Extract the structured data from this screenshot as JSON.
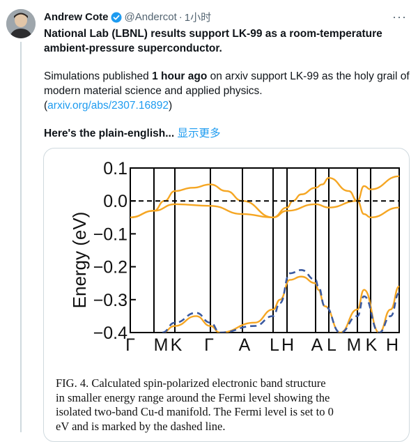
{
  "tweet": {
    "author_name": "Andrew Cote",
    "handle": "@Andercot",
    "separator": "·",
    "time": "1小时",
    "title": "National Lab (LBNL) results support LK-99 as a room-temperature ambient-pressure superconductor.",
    "body_pre": "Simulations published ",
    "body_bold": "1 hour ago",
    "body_post": " on arxiv support LK-99 as the holy grail of modern material science and applied physics.",
    "link_open": " (",
    "link_text": "arxiv.org/abs/2307.16892",
    "link_close": ")",
    "plain_english": "Here's the plain-english...",
    "show_more": "显示更多",
    "more_menu": "···"
  },
  "colors": {
    "link": "#1d9bf0",
    "verified": "#1d9bf0",
    "band_orange": "#f5a623",
    "band_blue": "#3b5aa0"
  },
  "figure": {
    "caption_lines": [
      "FIG. 4.  Calculated spin-polarized electronic band structure",
      "in smaller energy range around the Fermi level showing the",
      "isolated two-band Cu-d manifold.  The Fermi level is set to 0",
      "eV and is marked by the dashed line."
    ]
  },
  "chart_data": {
    "type": "line",
    "ylabel": "Energy (eV)",
    "ylim": [
      -0.4,
      0.1
    ],
    "yticks": [
      "0.1",
      "0.0",
      "−0.1",
      "−0.2",
      "−0.3",
      "−0.4"
    ],
    "x_labels": [
      "Γ",
      "M",
      "K",
      "Γ",
      "A",
      "L",
      "H",
      "A",
      "L",
      "M",
      "K",
      "H"
    ],
    "fermi_level": 0.0,
    "series": [
      {
        "color": "orange",
        "x": [
          0,
          1,
          1.5,
          2,
          2.5,
          3,
          3.5,
          4,
          5,
          6,
          6.2,
          6.5,
          7,
          7.5,
          8,
          8.7,
          9,
          9.5,
          10,
          11
        ],
        "values": [
          -0.05,
          -0.03,
          0.0,
          0.03,
          0.04,
          0.05,
          0.03,
          0.0,
          -0.05,
          -0.02,
          0.0,
          0.02,
          0.04,
          0.05,
          0.07,
          0.03,
          0.0,
          0.045,
          0.035,
          0.075
        ]
      },
      {
        "color": "orange",
        "x": [
          0,
          1,
          2,
          3,
          4,
          5,
          6,
          7,
          8,
          9,
          9.5,
          10,
          11
        ],
        "values": [
          -0.05,
          -0.03,
          -0.01,
          -0.015,
          -0.04,
          -0.05,
          -0.03,
          -0.01,
          -0.02,
          0.0,
          -0.04,
          -0.05,
          -0.02
        ]
      },
      {
        "color": "orange",
        "x": [
          1.4,
          2,
          2.6,
          3,
          3.3,
          4.4,
          5,
          5.5,
          6.1,
          6.5,
          7,
          7.2,
          7.7,
          8.4,
          9,
          9.5,
          10.3,
          10.7,
          11
        ],
        "values": [
          -0.4,
          -0.38,
          -0.35,
          -0.38,
          -0.4,
          -0.37,
          -0.33,
          -0.3,
          -0.24,
          -0.23,
          -0.25,
          -0.27,
          -0.32,
          -0.4,
          -0.33,
          -0.27,
          -0.4,
          -0.33,
          -0.26
        ]
      },
      {
        "color": "blue",
        "x": [
          1.4,
          2,
          2.6,
          3,
          3.3,
          4.4,
          5,
          5.5,
          6.1,
          6.5,
          7,
          7.2,
          7.7,
          8.4,
          9,
          9.5,
          10.3,
          10.7,
          11
        ],
        "values": [
          -0.4,
          -0.37,
          -0.34,
          -0.37,
          -0.4,
          -0.38,
          -0.35,
          -0.31,
          -0.22,
          -0.21,
          -0.24,
          -0.26,
          -0.32,
          -0.4,
          -0.35,
          -0.29,
          -0.4,
          -0.35,
          -0.28
        ]
      }
    ]
  }
}
